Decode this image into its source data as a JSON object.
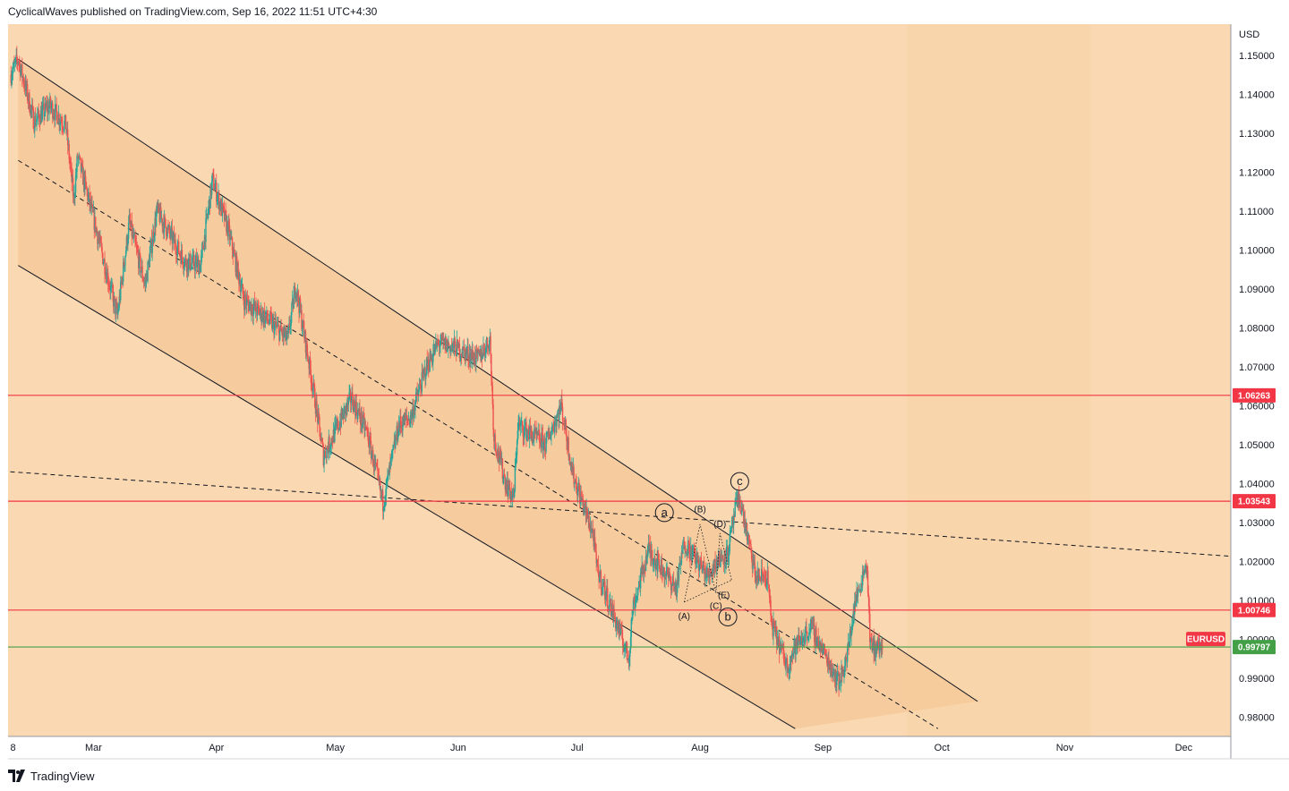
{
  "header": {
    "publisher_text": "CyclicalWaves published on TradingView.com, Sep 16, 2022 11:51 UTC+4:30"
  },
  "footer": {
    "brand": "TradingView",
    "logo_icon": "tradingview-logo-icon"
  },
  "colors": {
    "background": "#f9d8b2",
    "channel_fill": "#f5c896",
    "resistance": "#f23645",
    "current": "#43a047",
    "up": "#26a69a",
    "down": "#ef5350",
    "line": "#131722"
  },
  "chart_data": {
    "type": "candlestick",
    "symbol": "EURUSD",
    "currency_label": "USD",
    "ylim": [
      0.975,
      1.158
    ],
    "y_ticks": [
      "1.15000",
      "1.14000",
      "1.13000",
      "1.12000",
      "1.11000",
      "1.10000",
      "1.09000",
      "1.08000",
      "1.07000",
      "1.06000",
      "1.05000",
      "1.04000",
      "1.03000",
      "1.02000",
      "1.01000",
      "1.00000",
      "0.99000",
      "0.98000"
    ],
    "x_ticks": [
      {
        "label": "8",
        "date": "2022-02-08"
      },
      {
        "label": "Mar",
        "date": "2022-03-01"
      },
      {
        "label": "Apr",
        "date": "2022-04-01"
      },
      {
        "label": "May",
        "date": "2022-05-01"
      },
      {
        "label": "Jun",
        "date": "2022-06-01"
      },
      {
        "label": "Jul",
        "date": "2022-07-01"
      },
      {
        "label": "Aug",
        "date": "2022-08-01"
      },
      {
        "label": "Sep",
        "date": "2022-09-01"
      },
      {
        "label": "Oct",
        "date": "2022-10-01"
      },
      {
        "label": "Nov",
        "date": "2022-11-01"
      },
      {
        "label": "Dec",
        "date": "2022-12-01"
      }
    ],
    "horizontal_levels": [
      {
        "value": 1.06263,
        "label": "1.06263",
        "kind": "resistance"
      },
      {
        "value": 1.03543,
        "label": "1.03543",
        "kind": "resistance"
      },
      {
        "value": 1.00746,
        "label": "1.00746",
        "kind": "resistance"
      },
      {
        "value": 0.99797,
        "label": "0.99797",
        "kind": "current"
      }
    ],
    "current_symbol_tag": "EURUSD",
    "path_points": [
      {
        "date": "2022-02-08",
        "value": 1.145
      },
      {
        "date": "2022-02-10",
        "value": 1.149
      },
      {
        "date": "2022-02-14",
        "value": 1.133
      },
      {
        "date": "2022-02-18",
        "value": 1.137
      },
      {
        "date": "2022-02-22",
        "value": 1.132
      },
      {
        "date": "2022-02-24",
        "value": 1.113
      },
      {
        "date": "2022-02-25",
        "value": 1.124
      },
      {
        "date": "2022-03-01",
        "value": 1.108
      },
      {
        "date": "2022-03-07",
        "value": 1.083
      },
      {
        "date": "2022-03-10",
        "value": 1.107
      },
      {
        "date": "2022-03-14",
        "value": 1.091
      },
      {
        "date": "2022-03-17",
        "value": 1.11
      },
      {
        "date": "2022-03-24",
        "value": 1.097
      },
      {
        "date": "2022-03-28",
        "value": 1.096
      },
      {
        "date": "2022-03-31",
        "value": 1.118
      },
      {
        "date": "2022-04-04",
        "value": 1.105
      },
      {
        "date": "2022-04-08",
        "value": 1.087
      },
      {
        "date": "2022-04-13",
        "value": 1.083
      },
      {
        "date": "2022-04-19",
        "value": 1.077
      },
      {
        "date": "2022-04-21",
        "value": 1.091
      },
      {
        "date": "2022-04-25",
        "value": 1.067
      },
      {
        "date": "2022-04-28",
        "value": 1.047
      },
      {
        "date": "2022-05-05",
        "value": 1.062
      },
      {
        "date": "2022-05-09",
        "value": 1.053
      },
      {
        "date": "2022-05-13",
        "value": 1.035
      },
      {
        "date": "2022-05-17",
        "value": 1.055
      },
      {
        "date": "2022-05-20",
        "value": 1.057
      },
      {
        "date": "2022-05-24",
        "value": 1.07
      },
      {
        "date": "2022-05-27",
        "value": 1.076
      },
      {
        "date": "2022-05-31",
        "value": 1.075
      },
      {
        "date": "2022-06-06",
        "value": 1.072
      },
      {
        "date": "2022-06-09",
        "value": 1.077
      },
      {
        "date": "2022-06-10",
        "value": 1.052
      },
      {
        "date": "2022-06-13",
        "value": 1.04
      },
      {
        "date": "2022-06-15",
        "value": 1.036
      },
      {
        "date": "2022-06-16",
        "value": 1.055
      },
      {
        "date": "2022-06-23",
        "value": 1.05
      },
      {
        "date": "2022-06-27",
        "value": 1.06
      },
      {
        "date": "2022-06-30",
        "value": 1.042
      },
      {
        "date": "2022-07-05",
        "value": 1.027
      },
      {
        "date": "2022-07-06",
        "value": 1.018
      },
      {
        "date": "2022-07-12",
        "value": 1.001
      },
      {
        "date": "2022-07-14",
        "value": 0.995
      },
      {
        "date": "2022-07-15",
        "value": 1.008
      },
      {
        "date": "2022-07-19",
        "value": 1.023
      },
      {
        "date": "2022-07-21",
        "value": 1.02
      },
      {
        "date": "2022-07-26",
        "value": 1.013
      },
      {
        "date": "2022-07-28",
        "value": 1.025
      },
      {
        "date": "2022-08-03",
        "value": 1.016
      },
      {
        "date": "2022-08-05",
        "value": 1.02
      },
      {
        "date": "2022-08-08",
        "value": 1.022
      },
      {
        "date": "2022-08-10",
        "value": 1.034
      },
      {
        "date": "2022-08-11",
        "value": 1.036
      },
      {
        "date": "2022-08-15",
        "value": 1.016
      },
      {
        "date": "2022-08-18",
        "value": 1.016
      },
      {
        "date": "2022-08-19",
        "value": 1.004
      },
      {
        "date": "2022-08-23",
        "value": 0.993
      },
      {
        "date": "2022-08-25",
        "value": 0.998
      },
      {
        "date": "2022-08-29",
        "value": 1.003
      },
      {
        "date": "2022-09-01",
        "value": 0.997
      },
      {
        "date": "2022-09-05",
        "value": 0.989
      },
      {
        "date": "2022-09-07",
        "value": 0.995
      },
      {
        "date": "2022-09-09",
        "value": 1.009
      },
      {
        "date": "2022-09-12",
        "value": 1.02
      },
      {
        "date": "2022-09-13",
        "value": 0.998
      },
      {
        "date": "2022-09-16",
        "value": 0.998
      }
    ],
    "channel": {
      "upper_line": [
        {
          "date": "2022-02-10",
          "value": 1.149
        },
        {
          "date": "2022-10-10",
          "value": 0.984
        }
      ],
      "lower_line": [
        {
          "date": "2022-02-10",
          "value": 1.096
        },
        {
          "date": "2022-08-25",
          "value": 0.977
        }
      ],
      "midline": [
        {
          "date": "2022-02-10",
          "value": 1.123
        },
        {
          "date": "2022-09-30",
          "value": 0.977
        }
      ]
    },
    "dashed_trendline": [
      {
        "date": "2022-02-08",
        "value": 1.043
      },
      {
        "date": "2022-12-31",
        "value": 1.02
      }
    ],
    "wave_labels": [
      {
        "text": "a",
        "circled": true,
        "date": "2022-07-23",
        "value": 1.0325
      },
      {
        "text": "b",
        "circled": true,
        "date": "2022-08-08",
        "value": 1.0057
      },
      {
        "text": "c",
        "circled": true,
        "date": "2022-08-11",
        "value": 1.0405
      },
      {
        "text": "(A)",
        "circled": false,
        "date": "2022-07-28",
        "value": 1.0058
      },
      {
        "text": "(B)",
        "circled": false,
        "date": "2022-08-01",
        "value": 1.0333
      },
      {
        "text": "(C)",
        "circled": false,
        "date": "2022-08-05",
        "value": 1.0084
      },
      {
        "text": "(D)",
        "circled": false,
        "date": "2022-08-06",
        "value": 1.0295
      },
      {
        "text": "(E)",
        "circled": false,
        "date": "2022-08-07",
        "value": 1.0112
      }
    ]
  }
}
